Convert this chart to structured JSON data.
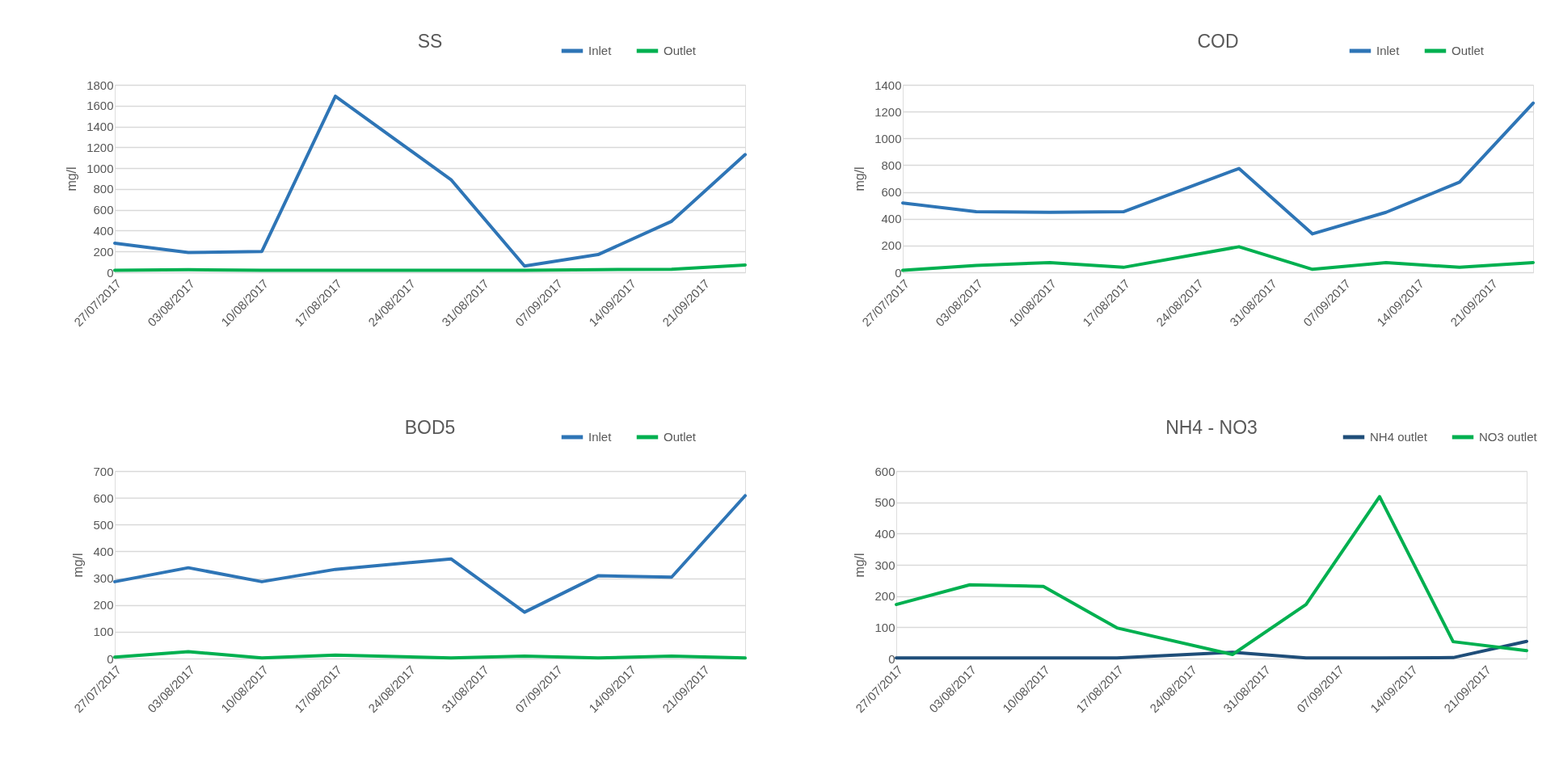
{
  "chart_data": [
    {
      "type": "line",
      "title": "SS",
      "ylabel": "mg/l",
      "legend": "top right",
      "grid": "y",
      "x": [
        "2017-07-27",
        "2017-08-03",
        "2017-08-10",
        "2017-08-17",
        "2017-08-28",
        "2017-09-04",
        "2017-09-11",
        "2017-09-18",
        "2017-09-25"
      ],
      "xlim": [
        "2017-07-27",
        "2017-09-25"
      ],
      "xticks": [
        {
          "value": "2017-07-27",
          "label": "27/07/2017"
        },
        {
          "value": "2017-08-03",
          "label": "03/08/2017"
        },
        {
          "value": "2017-08-10",
          "label": "10/08/2017"
        },
        {
          "value": "2017-08-17",
          "label": "17/08/2017"
        },
        {
          "value": "2017-08-24",
          "label": "24/08/2017"
        },
        {
          "value": "2017-08-31",
          "label": "31/08/2017"
        },
        {
          "value": "2017-09-07",
          "label": "07/09/2017"
        },
        {
          "value": "2017-09-14",
          "label": "14/09/2017"
        },
        {
          "value": "2017-09-21",
          "label": "21/09/2017"
        }
      ],
      "ylim": [
        0,
        1800
      ],
      "yticks": [
        0,
        200,
        400,
        600,
        800,
        1000,
        1200,
        1400,
        1600,
        1800
      ],
      "series": [
        {
          "name": "Inlet",
          "color": "#2e75b6",
          "values": [
            280,
            190,
            200,
            1690,
            890,
            60,
            170,
            490,
            1130
          ]
        },
        {
          "name": "Outlet",
          "color": "#00b050",
          "values": [
            20,
            25,
            20,
            20,
            20,
            20,
            25,
            30,
            70
          ]
        }
      ]
    },
    {
      "type": "line",
      "title": "COD",
      "ylabel": "mg/l",
      "legend": "top right",
      "grid": "y",
      "x": [
        "2017-07-27",
        "2017-08-03",
        "2017-08-10",
        "2017-08-17",
        "2017-08-28",
        "2017-09-04",
        "2017-09-11",
        "2017-09-18",
        "2017-09-25"
      ],
      "xlim": [
        "2017-07-27",
        "2017-09-25"
      ],
      "xticks": [
        {
          "value": "2017-07-27",
          "label": "27/07/2017"
        },
        {
          "value": "2017-08-03",
          "label": "03/08/2017"
        },
        {
          "value": "2017-08-10",
          "label": "10/08/2017"
        },
        {
          "value": "2017-08-17",
          "label": "17/08/2017"
        },
        {
          "value": "2017-08-24",
          "label": "24/08/2017"
        },
        {
          "value": "2017-08-31",
          "label": "31/08/2017"
        },
        {
          "value": "2017-09-07",
          "label": "07/09/2017"
        },
        {
          "value": "2017-09-14",
          "label": "14/09/2017"
        },
        {
          "value": "2017-09-21",
          "label": "21/09/2017"
        }
      ],
      "ylim": [
        0,
        1400
      ],
      "yticks": [
        0,
        200,
        400,
        600,
        800,
        1000,
        1200,
        1400
      ],
      "series": [
        {
          "name": "Inlet",
          "color": "#2e75b6",
          "values": [
            518,
            452,
            448,
            452,
            775,
            287,
            448,
            673,
            1264
          ]
        },
        {
          "name": "Outlet",
          "color": "#00b050",
          "values": [
            15,
            51,
            73,
            37,
            191,
            22,
            73,
            37,
            73
          ]
        }
      ]
    },
    {
      "type": "line",
      "title": "BOD5",
      "ylabel": "mg/l",
      "legend": "top right",
      "grid": "y",
      "x": [
        "2017-07-27",
        "2017-08-03",
        "2017-08-10",
        "2017-08-17",
        "2017-08-28",
        "2017-09-04",
        "2017-09-11",
        "2017-09-18",
        "2017-09-25"
      ],
      "xlim": [
        "2017-07-27",
        "2017-09-25"
      ],
      "xticks": [
        {
          "value": "2017-07-27",
          "label": "27/07/2017"
        },
        {
          "value": "2017-08-03",
          "label": "03/08/2017"
        },
        {
          "value": "2017-08-10",
          "label": "10/08/2017"
        },
        {
          "value": "2017-08-17",
          "label": "17/08/2017"
        },
        {
          "value": "2017-08-24",
          "label": "24/08/2017"
        },
        {
          "value": "2017-08-31",
          "label": "31/08/2017"
        },
        {
          "value": "2017-09-07",
          "label": "07/09/2017"
        },
        {
          "value": "2017-09-14",
          "label": "14/09/2017"
        },
        {
          "value": "2017-09-21",
          "label": "21/09/2017"
        }
      ],
      "ylim": [
        0,
        700
      ],
      "yticks": [
        0,
        100,
        200,
        300,
        400,
        500,
        600,
        700
      ],
      "series": [
        {
          "name": "Inlet",
          "color": "#2e75b6",
          "values": [
            287,
            339,
            287,
            333,
            372,
            173,
            309,
            304,
            608
          ]
        },
        {
          "name": "Outlet",
          "color": "#00b050",
          "values": [
            5,
            26,
            2,
            13,
            2,
            9,
            2,
            9,
            2
          ]
        }
      ]
    },
    {
      "type": "line",
      "title": "NH4 - NO3",
      "ylabel": "mg/l",
      "legend": "top right",
      "grid": "y",
      "x": [
        "2017-07-27",
        "2017-08-03",
        "2017-08-10",
        "2017-08-17",
        "2017-08-28",
        "2017-09-04",
        "2017-09-11",
        "2017-09-18",
        "2017-09-25"
      ],
      "xlim": [
        "2017-07-27",
        "2017-09-25"
      ],
      "xticks": [
        {
          "value": "2017-07-27",
          "label": "27/07/2017"
        },
        {
          "value": "2017-08-03",
          "label": "03/08/2017"
        },
        {
          "value": "2017-08-10",
          "label": "10/08/2017"
        },
        {
          "value": "2017-08-17",
          "label": "17/08/2017"
        },
        {
          "value": "2017-08-24",
          "label": "24/08/2017"
        },
        {
          "value": "2017-08-31",
          "label": "31/08/2017"
        },
        {
          "value": "2017-09-07",
          "label": "07/09/2017"
        },
        {
          "value": "2017-09-14",
          "label": "14/09/2017"
        },
        {
          "value": "2017-09-21",
          "label": "21/09/2017"
        }
      ],
      "ylim": [
        0,
        600
      ],
      "yticks": [
        0,
        100,
        200,
        300,
        400,
        500,
        600
      ],
      "series": [
        {
          "name": "NH4 outlet",
          "color": "#1f4e79",
          "values": [
            2,
            2,
            2,
            2,
            20,
            2,
            2,
            3,
            55
          ]
        },
        {
          "name": "NO3 outlet",
          "color": "#00b050",
          "values": [
            173,
            236,
            231,
            98,
            13,
            173,
            518,
            54,
            25
          ]
        }
      ]
    }
  ]
}
